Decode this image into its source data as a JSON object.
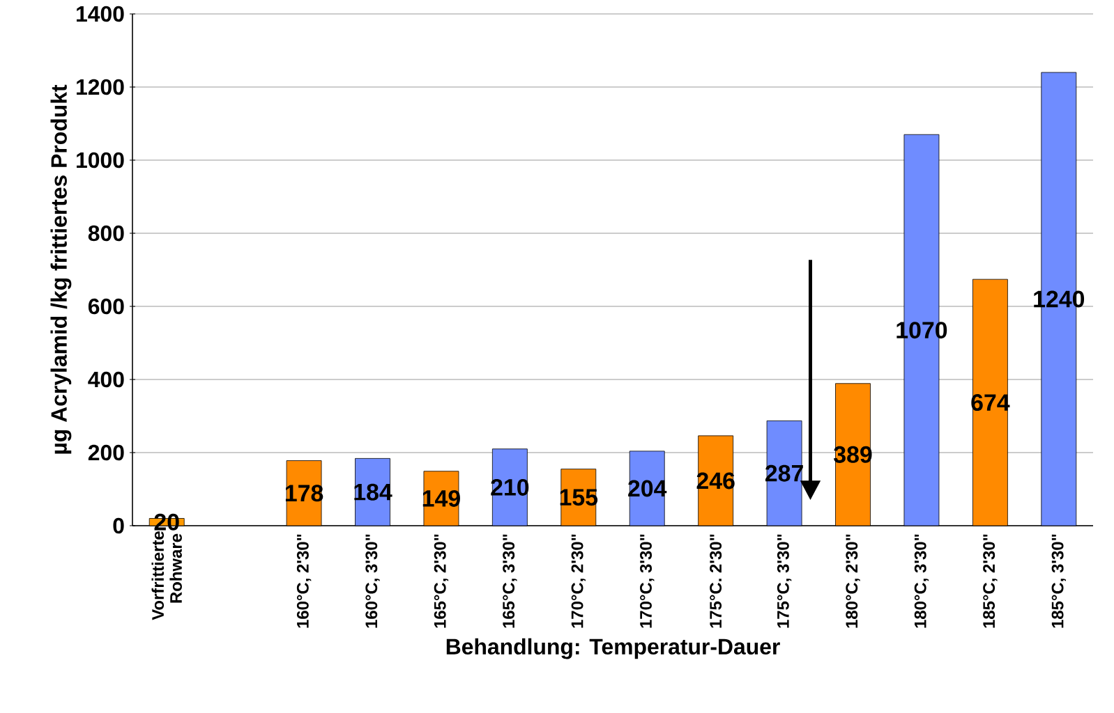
{
  "chart_data": {
    "type": "bar",
    "xlabel": "Behandlung: Temperatur-Dauer",
    "ylabel": "µg Acrylamid /kg frittiertes Produkt",
    "categories": [
      "Vorfrittierte Rohware",
      null,
      "160°C, 2'30\"",
      "160°C, 3'30\"",
      "165°C, 2'30\"",
      "165°C, 3'30\"",
      "170°C, 2'30\"",
      "170°C, 3'30\"",
      "175°C. 2'30\"",
      "175°C, 3'30\"",
      "180°C, 2'30\"",
      "180°C, 3'30\"",
      "185°C, 2'30\"",
      "185°C, 3'30\""
    ],
    "values": [
      20,
      null,
      178,
      184,
      149,
      210,
      155,
      204,
      246,
      287,
      389,
      1070,
      674,
      1240
    ],
    "colors": [
      "#ff9900",
      "#ff9900",
      "#ff8a00",
      "#6f8cff",
      "#ff8a00",
      "#6f8cff",
      "#ff8a00",
      "#6f8cff",
      "#ff8a00",
      "#6f8cff",
      "#ff8a00",
      "#6f8cff",
      "#ff8a00",
      "#6f8cff"
    ],
    "ylim": [
      0,
      1400
    ],
    "yticks": [
      0,
      200,
      400,
      600,
      800,
      1000,
      1200,
      1400
    ],
    "grid": "y",
    "data_labels": true
  }
}
